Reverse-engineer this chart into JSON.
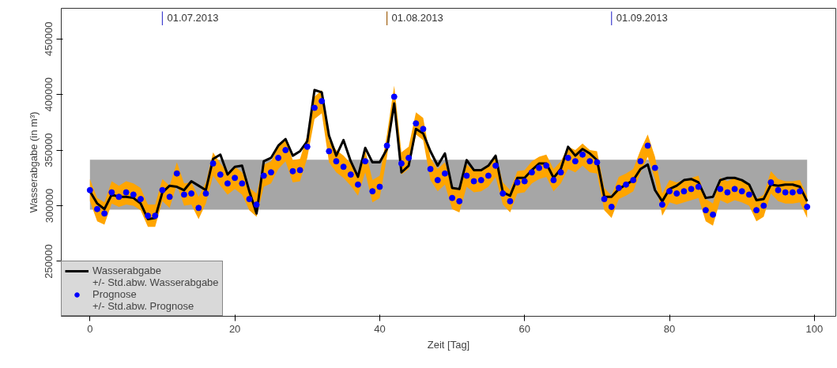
{
  "chart_data": {
    "type": "line",
    "xlabel": "Zeit [Tag]",
    "ylabel": "Wasserabgabe (in m³)",
    "x": [
      0,
      1,
      2,
      3,
      4,
      5,
      6,
      7,
      8,
      9,
      10,
      11,
      12,
      13,
      14,
      15,
      16,
      17,
      18,
      19,
      20,
      21,
      22,
      23,
      24,
      25,
      26,
      27,
      28,
      29,
      30,
      31,
      32,
      33,
      34,
      35,
      36,
      37,
      38,
      39,
      40,
      41,
      42,
      43,
      44,
      45,
      46,
      47,
      48,
      49,
      50,
      51,
      52,
      53,
      54,
      55,
      56,
      57,
      58,
      59,
      60,
      61,
      62,
      63,
      64,
      65,
      66,
      67,
      68,
      69,
      70,
      71,
      72,
      73,
      74,
      75,
      76,
      77,
      78,
      79,
      80,
      81,
      82,
      83,
      84,
      85,
      86,
      87,
      88,
      89,
      90,
      91,
      92,
      93,
      94,
      95,
      96,
      97,
      98,
      99
    ],
    "series": [
      {
        "name": "Wasserabgabe",
        "color": "#000000",
        "lower": [
          296400,
          296400,
          296400,
          296400,
          296400,
          296400,
          296400,
          296400,
          296400,
          296400,
          296400,
          296400,
          296400,
          296400,
          296400,
          296400,
          296400,
          296400,
          296400,
          296400,
          296400,
          296400,
          296400,
          296400,
          296400,
          296400,
          296400,
          296400,
          296400,
          296400,
          296400,
          296400,
          296400,
          296400,
          296400,
          296400,
          296400,
          296400,
          296400,
          296400,
          296400,
          296400,
          296400,
          296400,
          296400,
          296400,
          296400,
          296400,
          296400,
          296400,
          296400,
          296400,
          296400,
          296400,
          296400,
          296400,
          296400,
          296400,
          296400,
          296400,
          296400,
          296400,
          296400,
          296400,
          296400,
          296400,
          296400,
          296400,
          296400,
          296400,
          296400,
          296400,
          296400,
          296400,
          296400,
          296400,
          296400,
          296400,
          296400,
          296400,
          296400,
          296400,
          296400,
          296400,
          296400,
          296400,
          296400,
          296400,
          296400,
          296400,
          296400,
          296400,
          296400,
          296400,
          296400,
          296400,
          296400,
          296400,
          296400,
          296400
        ],
        "upper": [
          341400,
          341400,
          341400,
          341400,
          341400,
          341400,
          341400,
          341400,
          341400,
          341400,
          341400,
          341400,
          341400,
          341400,
          341400,
          341400,
          341400,
          341400,
          341400,
          341400,
          341400,
          341400,
          341400,
          341400,
          341400,
          341400,
          341400,
          341400,
          341400,
          341400,
          341400,
          341400,
          341400,
          341400,
          341400,
          341400,
          341400,
          341400,
          341400,
          341400,
          341400,
          341400,
          341400,
          341400,
          341400,
          341400,
          341400,
          341400,
          341400,
          341400,
          341400,
          341400,
          341400,
          341400,
          341400,
          341400,
          341400,
          341400,
          341400,
          341400,
          341400,
          341400,
          341400,
          341400,
          341400,
          341400,
          341400,
          341400,
          341400,
          341400,
          341400,
          341400,
          341400,
          341400,
          341400,
          341400,
          341400,
          341400,
          341400,
          341400,
          341400,
          341400,
          341400,
          341400,
          341400,
          341400,
          341400,
          341400,
          341400,
          341400,
          341400,
          341400,
          341400,
          341400,
          341400,
          341400,
          341400,
          341400,
          341400,
          341400
        ],
        "values": [
          313000,
          302000,
          297000,
          310000,
          308000,
          308000,
          307000,
          302000,
          288000,
          289000,
          312000,
          318000,
          317000,
          314000,
          322000,
          318000,
          314000,
          342000,
          346000,
          328000,
          335000,
          336000,
          313000,
          293000,
          340000,
          343000,
          354000,
          360000,
          345000,
          349000,
          358000,
          404000,
          402000,
          363000,
          345000,
          359000,
          340000,
          326000,
          352000,
          339000,
          339000,
          351000,
          392000,
          330000,
          336000,
          369000,
          365000,
          349000,
          336000,
          347000,
          316000,
          315000,
          341000,
          332000,
          332000,
          336000,
          345000,
          312000,
          309000,
          325000,
          325000,
          332000,
          338000,
          338000,
          325000,
          333000,
          353000,
          345000,
          351000,
          347000,
          341000,
          308000,
          308000,
          315000,
          319000,
          323000,
          333000,
          337000,
          314000,
          304000,
          315000,
          318000,
          323000,
          324000,
          321000,
          307000,
          308000,
          323000,
          325000,
          325000,
          323000,
          319000,
          305000,
          306000,
          319000,
          318000,
          319000,
          319000,
          317000,
          304000
        ]
      },
      {
        "name": "Prognose",
        "type": "scatter",
        "color": "#0000ff",
        "marker": "circle",
        "values": [
          314000,
          297000,
          293000,
          312000,
          308000,
          312000,
          310000,
          306000,
          291000,
          291000,
          314000,
          308000,
          329000,
          310000,
          311000,
          298000,
          311000,
          338000,
          328000,
          320000,
          325000,
          320000,
          306000,
          301000,
          327000,
          330000,
          343000,
          350000,
          331000,
          332000,
          353000,
          388000,
          394000,
          349000,
          340000,
          335000,
          328000,
          319000,
          340000,
          313000,
          317000,
          354000,
          398000,
          338000,
          343000,
          374000,
          369000,
          333000,
          323000,
          329000,
          307000,
          304000,
          327000,
          322000,
          323000,
          327000,
          336000,
          311000,
          304000,
          321000,
          322000,
          330000,
          334000,
          336000,
          323000,
          330000,
          343000,
          340000,
          346000,
          340000,
          339000,
          306000,
          299000,
          316000,
          319000,
          323000,
          340000,
          354000,
          334000,
          301000,
          313000,
          311000,
          313000,
          315000,
          317000,
          296000,
          292000,
          315000,
          312000,
          315000,
          313000,
          310000,
          296000,
          300000,
          321000,
          314000,
          312000,
          312000,
          313000,
          299000
        ],
        "lower": [
          304000,
          286000,
          283000,
          302000,
          299000,
          301000,
          300000,
          296000,
          281000,
          281000,
          304000,
          298000,
          319000,
          300000,
          301000,
          288000,
          302000,
          327000,
          318000,
          310000,
          315000,
          310000,
          296000,
          290000,
          317000,
          320000,
          333000,
          340000,
          321000,
          322000,
          343000,
          378000,
          383000,
          339000,
          330000,
          325000,
          318000,
          309000,
          330000,
          303000,
          307000,
          344000,
          388000,
          328000,
          333000,
          364000,
          359000,
          323000,
          313000,
          319000,
          297000,
          294000,
          317000,
          312000,
          313000,
          317000,
          326000,
          301000,
          294000,
          311000,
          312000,
          320000,
          324000,
          326000,
          313000,
          320000,
          333000,
          330000,
          336000,
          330000,
          329000,
          296000,
          289000,
          306000,
          309000,
          313000,
          330000,
          344000,
          324000,
          291000,
          303000,
          301000,
          303000,
          305000,
          307000,
          286000,
          282000,
          305000,
          302000,
          305000,
          303000,
          300000,
          286000,
          290000,
          311000,
          304000,
          302000,
          302000,
          303000,
          289000
        ],
        "upper": [
          324000,
          307000,
          303000,
          322000,
          318000,
          322000,
          320000,
          316000,
          301000,
          301000,
          324000,
          318000,
          339000,
          320000,
          321000,
          308000,
          321000,
          348000,
          338000,
          330000,
          335000,
          330000,
          316000,
          311000,
          337000,
          340000,
          353000,
          360000,
          341000,
          342000,
          363000,
          398000,
          404000,
          359000,
          350000,
          345000,
          338000,
          329000,
          350000,
          323000,
          327000,
          364000,
          408000,
          348000,
          353000,
          384000,
          379000,
          343000,
          333000,
          339000,
          317000,
          314000,
          337000,
          332000,
          333000,
          337000,
          346000,
          321000,
          314000,
          331000,
          332000,
          340000,
          344000,
          346000,
          333000,
          340000,
          353000,
          350000,
          356000,
          350000,
          349000,
          316000,
          309000,
          326000,
          329000,
          333000,
          350000,
          364000,
          344000,
          311000,
          323000,
          321000,
          323000,
          325000,
          327000,
          306000,
          302000,
          325000,
          322000,
          325000,
          323000,
          320000,
          306000,
          310000,
          331000,
          324000,
          322000,
          322000,
          323000,
          309000
        ]
      }
    ],
    "annotations": [
      "+/- Std.abw. Wasserabgabe",
      "+/- Std.abw. Prognose"
    ],
    "ref_lines": [
      {
        "axis": "x",
        "value": 10,
        "label": "01.07.2013",
        "color": "#4040d0"
      },
      {
        "axis": "x",
        "value": 41,
        "label": "01.08.2013",
        "color": "#a06010"
      },
      {
        "axis": "x",
        "value": 72,
        "label": "01.09.2013",
        "color": "#4040d0"
      }
    ],
    "xlim": [
      -3.96,
      102.96
    ],
    "ylim": [
      200600,
      477500
    ],
    "xticks": [
      0,
      20,
      40,
      60,
      80,
      100
    ],
    "yticks": [
      250000,
      300000,
      350000,
      400000,
      450000
    ],
    "grid": false,
    "legend": "bottom left"
  }
}
